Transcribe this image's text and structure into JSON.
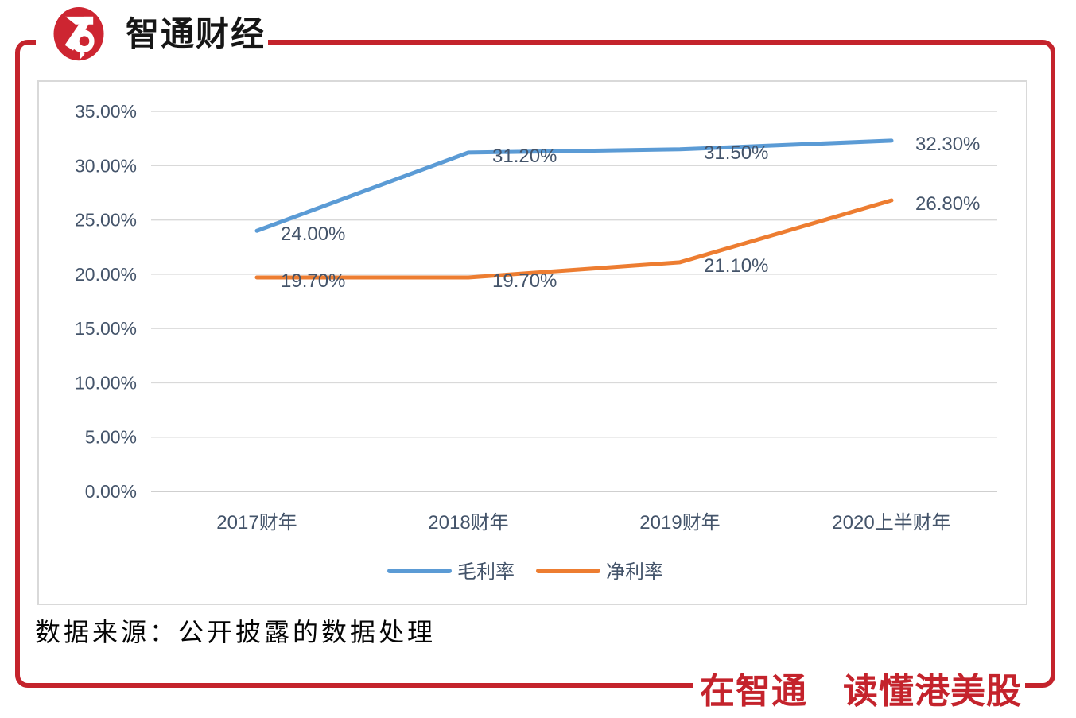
{
  "brand": {
    "logo_text": "智通财经",
    "slogan": "在智通　读懂港美股"
  },
  "colors": {
    "brand_red": "#c4232c",
    "logo_red": "#cd2531",
    "grid": "#d9d9d9",
    "axis_line": "#bfbfbf",
    "chart_border": "#d9d9d9",
    "label": "#44546a",
    "logo_text_color": "#161616"
  },
  "chart_data": {
    "type": "line",
    "categories": [
      "2017财年",
      "2018财年",
      "2019财年",
      "2020上半财年"
    ],
    "series": [
      {
        "name": "毛利率",
        "color": "#5b9bd5",
        "values": [
          24.0,
          31.2,
          31.5,
          32.3
        ],
        "labels": [
          "24.00%",
          "31.20%",
          "31.50%",
          "32.30%"
        ]
      },
      {
        "name": "净利率",
        "color": "#ed7d31",
        "values": [
          19.7,
          19.7,
          21.1,
          26.8
        ],
        "labels": [
          "19.70%",
          "19.70%",
          "21.10%",
          "26.80%"
        ]
      }
    ],
    "y_axis": {
      "min": 0,
      "max": 35,
      "step": 5,
      "tick_labels": [
        "0.00%",
        "5.00%",
        "10.00%",
        "15.00%",
        "20.00%",
        "25.00%",
        "30.00%",
        "35.00%"
      ]
    },
    "grid": true,
    "legend_position": "bottom",
    "title": ""
  },
  "footer": {
    "source_text": "数据来源：公开披露的数据处理"
  }
}
